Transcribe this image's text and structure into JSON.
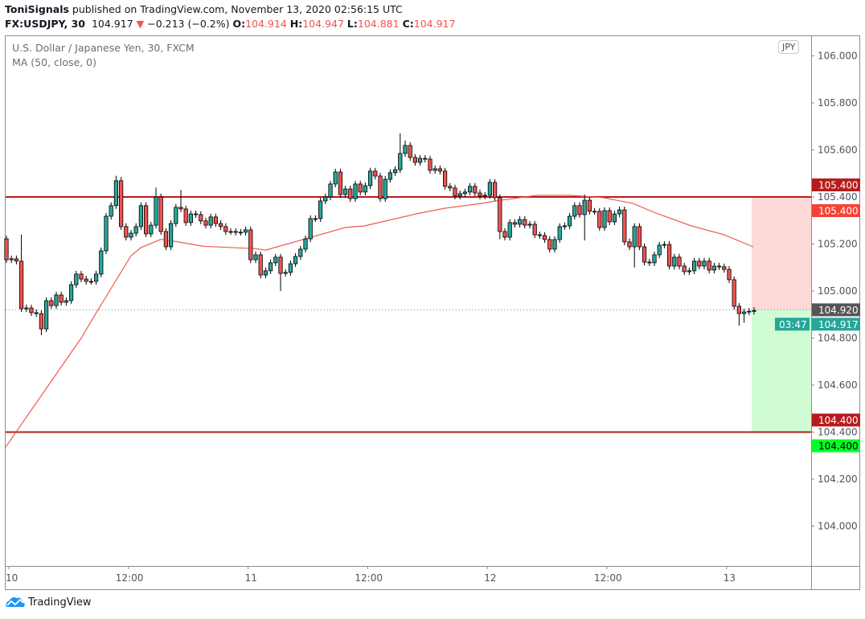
{
  "header": {
    "author": "ToniSignals",
    "published_text": "published on TradingView.com, November 13, 2020 02:56:15 UTC",
    "symbol": "FX:USDJPY, 30",
    "last_price": "104.917",
    "change": "−0.213 (−0.2%)",
    "change_direction_icon": "triangle-down-icon",
    "o_label": "O:",
    "o_value": "104.914",
    "h_label": "H:",
    "h_value": "104.947",
    "l_label": "L:",
    "l_value": "104.881",
    "c_label": "C:",
    "c_value": "104.917"
  },
  "legend": {
    "series_title": "U.S. Dollar / Japanese Yen, 30, FXCM",
    "indicator": "MA (50, close, 0)"
  },
  "currency_badge": "JPY",
  "footer": {
    "brand": "TradingView"
  },
  "colors": {
    "up": "#26a69a",
    "down": "#ef5350",
    "ma": "#f05a4f",
    "hline": "#b71c1c",
    "stop_zone": "#fdd9d7",
    "target_zone": "#d0fcd4"
  },
  "chart_data": {
    "type": "candlestick",
    "title": "U.S. Dollar / Japanese Yen, 30, FXCM",
    "interval_minutes": 30,
    "ylim": [
      103.93,
      106.05
    ],
    "y_ticks": [
      "106.000",
      "105.800",
      "105.600",
      "105.400",
      "105.200",
      "105.000",
      "104.800",
      "104.600",
      "104.400",
      "104.200",
      "104.000"
    ],
    "y_tick_values": [
      106.0,
      105.8,
      105.6,
      105.4,
      105.2,
      105.0,
      104.8,
      104.6,
      104.4,
      104.2,
      104.0
    ],
    "x_ticks": [
      {
        "label": "10",
        "candle": 0
      },
      {
        "label": "12:00",
        "candle": 24
      },
      {
        "label": "11",
        "candle": 48
      },
      {
        "label": "12:00",
        "candle": 72
      },
      {
        "label": "12",
        "candle": 96
      },
      {
        "label": "12:00",
        "candle": 120
      },
      {
        "label": "13",
        "candle": 144
      }
    ],
    "first_open": 105.222,
    "closes": [
      105.133,
      105.137,
      105.127,
      104.925,
      104.928,
      104.908,
      104.904,
      104.839,
      104.959,
      104.938,
      104.983,
      104.952,
      104.959,
      105.027,
      105.072,
      105.051,
      105.041,
      105.041,
      105.072,
      105.171,
      105.318,
      105.363,
      105.469,
      105.274,
      105.229,
      105.246,
      105.274,
      105.363,
      105.243,
      105.28,
      105.4,
      105.253,
      105.188,
      105.287,
      105.356,
      105.349,
      105.291,
      105.328,
      105.325,
      105.298,
      105.28,
      105.315,
      105.287,
      105.274,
      105.253,
      105.253,
      105.25,
      105.25,
      105.26,
      105.133,
      105.154,
      105.068,
      105.086,
      105.12,
      105.144,
      105.075,
      105.079,
      105.116,
      105.147,
      105.178,
      105.222,
      105.308,
      105.308,
      105.383,
      105.4,
      105.455,
      105.506,
      105.41,
      105.434,
      105.393,
      105.455,
      105.421,
      105.448,
      105.51,
      105.489,
      105.393,
      105.475,
      105.503,
      105.516,
      105.585,
      105.619,
      105.568,
      105.547,
      105.564,
      105.561,
      105.513,
      105.52,
      105.51,
      105.445,
      105.438,
      105.404,
      105.414,
      105.421,
      105.445,
      105.417,
      105.404,
      105.407,
      105.462,
      105.397,
      105.253,
      105.229,
      105.291,
      105.284,
      105.304,
      105.28,
      105.284,
      105.239,
      105.236,
      105.219,
      105.178,
      105.219,
      105.274,
      105.277,
      105.318,
      105.363,
      105.325,
      105.386,
      105.339,
      105.339,
      105.27,
      105.342,
      105.294,
      105.328,
      105.345,
      105.209,
      105.188,
      105.274,
      105.188,
      105.123,
      105.12,
      105.154,
      105.195,
      105.198,
      105.106,
      105.144,
      105.106,
      105.082,
      105.086,
      105.127,
      105.106,
      105.127,
      105.089,
      105.106,
      105.103,
      105.092,
      105.048,
      104.935,
      104.904,
      104.911,
      104.914,
      104.917
    ],
    "default_wick": 0.014,
    "long_wicks": [
      {
        "candle": 3,
        "high": 105.24
      },
      {
        "candle": 7,
        "low": 104.812
      },
      {
        "candle": 22,
        "high": 105.49
      },
      {
        "candle": 23,
        "high": 105.485
      },
      {
        "candle": 30,
        "high": 105.44
      },
      {
        "candle": 35,
        "high": 105.43
      },
      {
        "candle": 55,
        "low": 105.0
      },
      {
        "candle": 79,
        "high": 105.67
      },
      {
        "candle": 80,
        "high": 105.64
      },
      {
        "candle": 99,
        "low": 105.22
      },
      {
        "candle": 116,
        "high": 105.41
      },
      {
        "candle": 116,
        "low": 105.215
      },
      {
        "candle": 126,
        "low": 105.1
      },
      {
        "candle": 147,
        "low": 104.853
      },
      {
        "candle": 148,
        "low": 104.865
      }
    ],
    "moving_average": {
      "name": "MA (50, close, 0)",
      "points": [
        [
          -0.2,
          104.336
        ],
        [
          15,
          104.8
        ],
        [
          18.1,
          104.91
        ],
        [
          25,
          105.15
        ],
        [
          27,
          105.185
        ],
        [
          31,
          105.22
        ],
        [
          34.2,
          105.21
        ],
        [
          39.5,
          105.19
        ],
        [
          50,
          105.18
        ],
        [
          52,
          105.174
        ],
        [
          68,
          105.27
        ],
        [
          71.8,
          105.277
        ],
        [
          82.6,
          105.33
        ],
        [
          88,
          105.352
        ],
        [
          95.5,
          105.373
        ],
        [
          98.2,
          105.383
        ],
        [
          106.3,
          105.407
        ],
        [
          113.2,
          105.407
        ],
        [
          119.7,
          105.397
        ],
        [
          125.6,
          105.373
        ],
        [
          130.5,
          105.33
        ],
        [
          137.4,
          105.277
        ],
        [
          143.9,
          105.24
        ],
        [
          149.8,
          105.188
        ]
      ]
    },
    "horizontal_lines": [
      105.4,
      104.4
    ],
    "position": {
      "entry": 104.92,
      "stop": 105.4,
      "target": 104.4,
      "start_candle": 150
    },
    "price_labels": [
      {
        "text": "105.400",
        "value": 105.4,
        "bg": "#b71c1c",
        "fg": "#ffffff",
        "offset": 0
      },
      {
        "text": "105.400",
        "value": 105.4,
        "bg": "#f44336",
        "fg": "#ffffff",
        "offset": 1
      },
      {
        "text": "104.920",
        "value": 104.92,
        "bg": "#555555",
        "fg": "#ffffff",
        "offset": 0
      },
      {
        "text": "104.917",
        "value": 104.917,
        "bg": "#26a69a",
        "fg": "#ffffff",
        "offset": 1
      },
      {
        "text": "104.400",
        "value": 104.4,
        "bg": "#b71c1c",
        "fg": "#ffffff",
        "offset": 0
      },
      {
        "text": "104.400",
        "value": 104.4,
        "bg": "#00ff22",
        "fg": "#000000",
        "offset": 1
      }
    ],
    "countdown": "03:47"
  }
}
